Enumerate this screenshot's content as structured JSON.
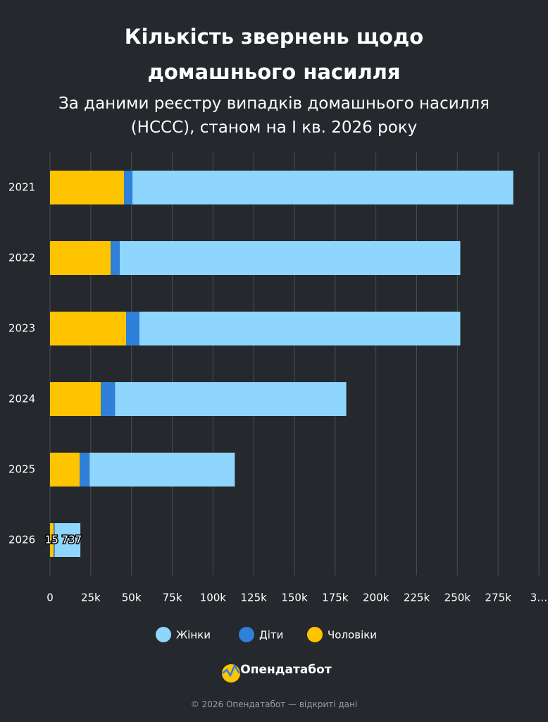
{
  "chart_data": {
    "type": "stacked-barh",
    "title": "Кількість звернень щодо домашнього насилля",
    "subtitle": "За даними реєстру випадків домашнього насилля (НСCC), станом на I кв. 2026 року",
    "categories": [
      "2021",
      "2022",
      "2023",
      "2024",
      "2025",
      "2026"
    ],
    "series": [
      {
        "name": "Жінки",
        "color": "#8fd6ff",
        "values": [
          233700,
          209000,
          196900,
          141900,
          89100,
          15737
        ],
        "value_labels": [
          null,
          null,
          null,
          null,
          null,
          "15 737"
        ]
      },
      {
        "name": "Діти",
        "color": "#2f80d8",
        "values": [
          5200,
          5600,
          8200,
          8700,
          6100,
          700
        ]
      },
      {
        "name": "Чоловіки",
        "color": "#ffc400",
        "values": [
          45400,
          37200,
          46700,
          31200,
          18200,
          2200
        ]
      }
    ],
    "stack_order": [
      "Чоловіки",
      "Діти",
      "Жінки"
    ],
    "xlim": [
      0,
      300000
    ],
    "xticks": [
      0,
      {
        "value": 25000,
        "label": "25k"
      },
      {
        "value": 50000,
        "label": "50k"
      },
      {
        "value": 75000,
        "label": "75k"
      },
      {
        "value": 100000,
        "label": "100k"
      },
      {
        "value": 125000,
        "label": "125k"
      },
      {
        "value": 150000,
        "label": "150k"
      },
      {
        "value": 175000,
        "label": "175k"
      },
      {
        "value": 200000,
        "label": "200k"
      },
      {
        "value": 225000,
        "label": "225k"
      },
      {
        "value": 250000,
        "label": "250k"
      },
      {
        "value": 275000,
        "label": "275k"
      },
      {
        "value": 300000,
        "label": "3…"
      }
    ],
    "grid": true,
    "legend": "bottom"
  },
  "brand": "Опендатабот",
  "footer": "© 2026 Опендатабот — відкриті дані"
}
